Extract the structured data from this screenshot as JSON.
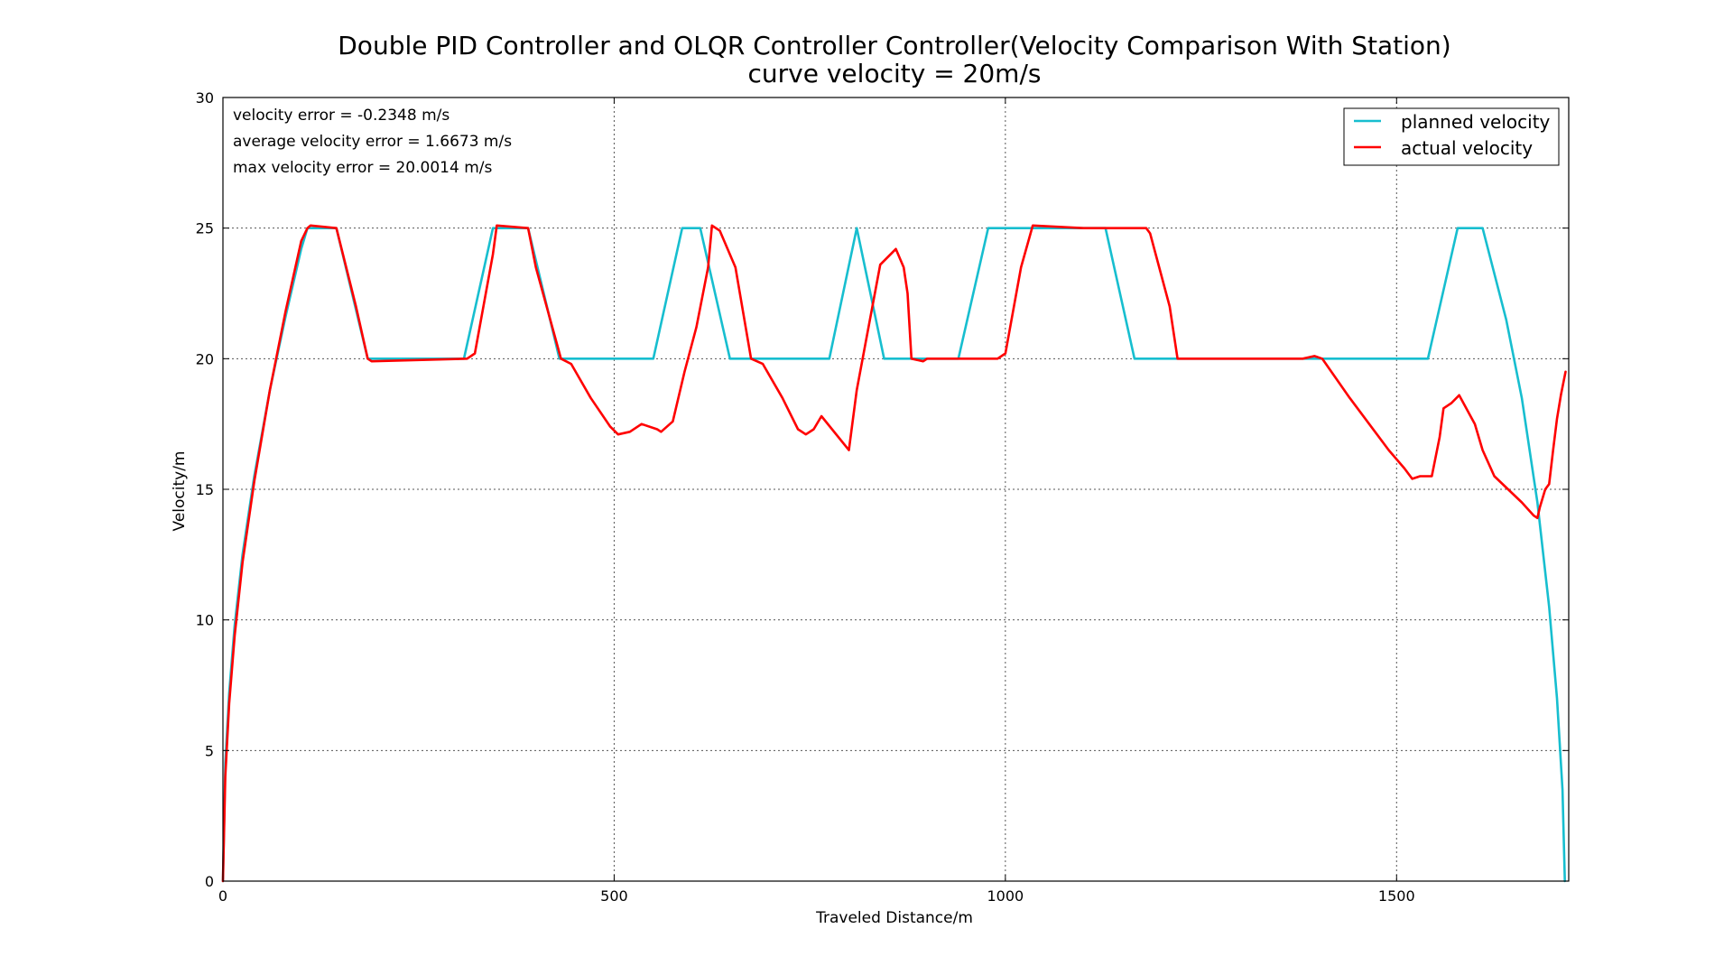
{
  "chart_data": {
    "type": "line",
    "title": "Double PID Controller and OLQR Controller Controller(Velocity Comparison With Station)",
    "subtitle": "curve velocity = 20m/s",
    "xlabel": "Traveled Distance/m",
    "ylabel": "Velocity/m",
    "xlim": [
      0,
      1720
    ],
    "ylim": [
      0,
      30
    ],
    "x_ticks": [
      0,
      500,
      1000,
      1500
    ],
    "y_ticks": [
      0,
      5,
      10,
      15,
      20,
      25,
      30
    ],
    "grid": true,
    "legend_position": "top-right",
    "annotations": [
      "velocity error = -0.2348 m/s",
      "average velocity error = 1.6673 m/s",
      "max velocity error = 20.0014 m/s"
    ],
    "series": [
      {
        "name": "planned velocity",
        "color": "#17becf",
        "x": [
          0,
          3,
          8,
          15,
          25,
          40,
          60,
          80,
          100,
          108,
          145,
          185,
          308,
          345,
          390,
          430,
          550,
          587,
          610,
          648,
          775,
          810,
          845,
          940,
          978,
          1128,
          1165,
          1540,
          1578,
          1610,
          1640,
          1660,
          1680,
          1695,
          1705,
          1712,
          1715
        ],
        "y": [
          0,
          4.5,
          7.2,
          9.8,
          12.5,
          15.5,
          18.8,
          21.6,
          24.2,
          25,
          25,
          20,
          20,
          25,
          25,
          20,
          20,
          25,
          25,
          20,
          20,
          25,
          20,
          20,
          25,
          25,
          20,
          20,
          25,
          25,
          21.5,
          18.5,
          14.5,
          10.5,
          7,
          3.5,
          0
        ]
      },
      {
        "name": "actual velocity",
        "color": "#ff0000",
        "x": [
          0,
          3,
          8,
          15,
          25,
          40,
          60,
          80,
          100,
          108,
          112,
          145,
          170,
          185,
          190,
          312,
          322,
          345,
          350,
          390,
          400,
          432,
          445,
          470,
          495,
          505,
          520,
          535,
          555,
          560,
          575,
          590,
          605,
          620,
          625,
          635,
          655,
          675,
          690,
          715,
          735,
          745,
          755,
          765,
          800,
          810,
          825,
          840,
          860,
          870,
          875,
          880,
          895,
          900,
          990,
          1000,
          1020,
          1035,
          1100,
          1180,
          1185,
          1210,
          1220,
          1380,
          1395,
          1405,
          1440,
          1490,
          1510,
          1520,
          1530,
          1545,
          1555,
          1560,
          1565,
          1570,
          1580,
          1600,
          1610,
          1625,
          1660,
          1675,
          1680,
          1683,
          1690,
          1695,
          1700,
          1705,
          1710,
          1716
        ],
        "y": [
          0,
          4,
          6.8,
          9.4,
          12.2,
          15.3,
          18.8,
          21.8,
          24.5,
          25,
          25.1,
          25,
          22,
          20,
          19.9,
          20,
          20.2,
          24,
          25.1,
          25,
          23.5,
          20,
          19.8,
          18.5,
          17.4,
          17.1,
          17.2,
          17.5,
          17.3,
          17.2,
          17.6,
          19.5,
          21.2,
          23.5,
          25.1,
          24.9,
          23.5,
          20,
          19.8,
          18.5,
          17.3,
          17.1,
          17.3,
          17.8,
          16.5,
          18.8,
          21.2,
          23.6,
          24.2,
          23.5,
          22.5,
          20,
          19.9,
          20,
          20,
          20.2,
          23.5,
          25.1,
          25,
          25,
          24.8,
          22,
          20,
          20,
          20.1,
          20,
          18.5,
          16.5,
          15.8,
          15.4,
          15.5,
          15.5,
          17,
          18.1,
          18.2,
          18.3,
          18.6,
          17.5,
          16.5,
          15.5,
          14.5,
          14.0,
          13.9,
          14.3,
          15.0,
          15.2,
          16.5,
          17.7,
          18.6,
          19.5
        ]
      }
    ]
  }
}
